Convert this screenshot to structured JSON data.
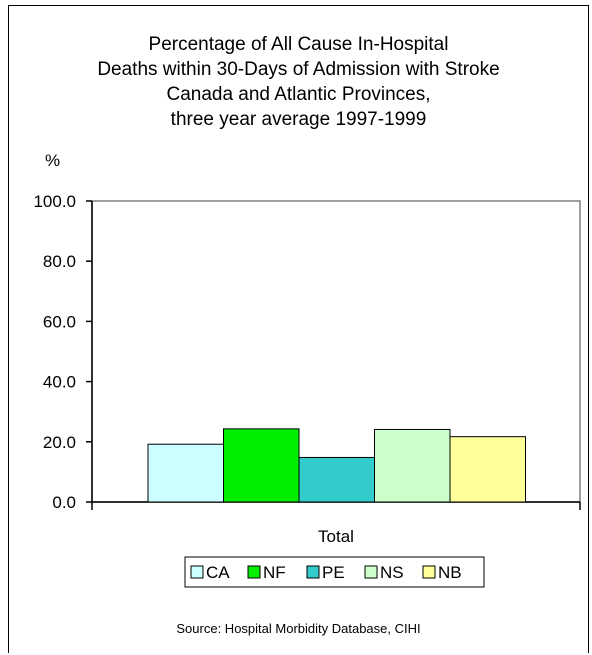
{
  "chart_data": {
    "type": "bar",
    "title_lines": [
      "Percentage of All Cause In-Hospital",
      "Deaths within 30-Days of Admission with Stroke",
      "Canada and Atlantic Provinces,",
      "three year average 1997-1999"
    ],
    "ylabel": "%",
    "xlabel": "",
    "categories": [
      "Total"
    ],
    "ylim": [
      0,
      100
    ],
    "yticks": [
      "0.0",
      "20.0",
      "40.0",
      "60.0",
      "80.0",
      "100.0"
    ],
    "series": [
      {
        "name": "CA",
        "values": [
          19.2
        ],
        "color": "#ccffff"
      },
      {
        "name": "NF",
        "values": [
          24.3
        ],
        "color": "#00ee00"
      },
      {
        "name": "PE",
        "values": [
          14.8
        ],
        "color": "#33cccc"
      },
      {
        "name": "NS",
        "values": [
          24.1
        ],
        "color": "#ccffcc"
      },
      {
        "name": "NB",
        "values": [
          21.7
        ],
        "color": "#ffff99"
      }
    ],
    "grid": false,
    "legend_position": "bottom",
    "source": "Source:  Hospital Morbidity Database, CIHI"
  }
}
